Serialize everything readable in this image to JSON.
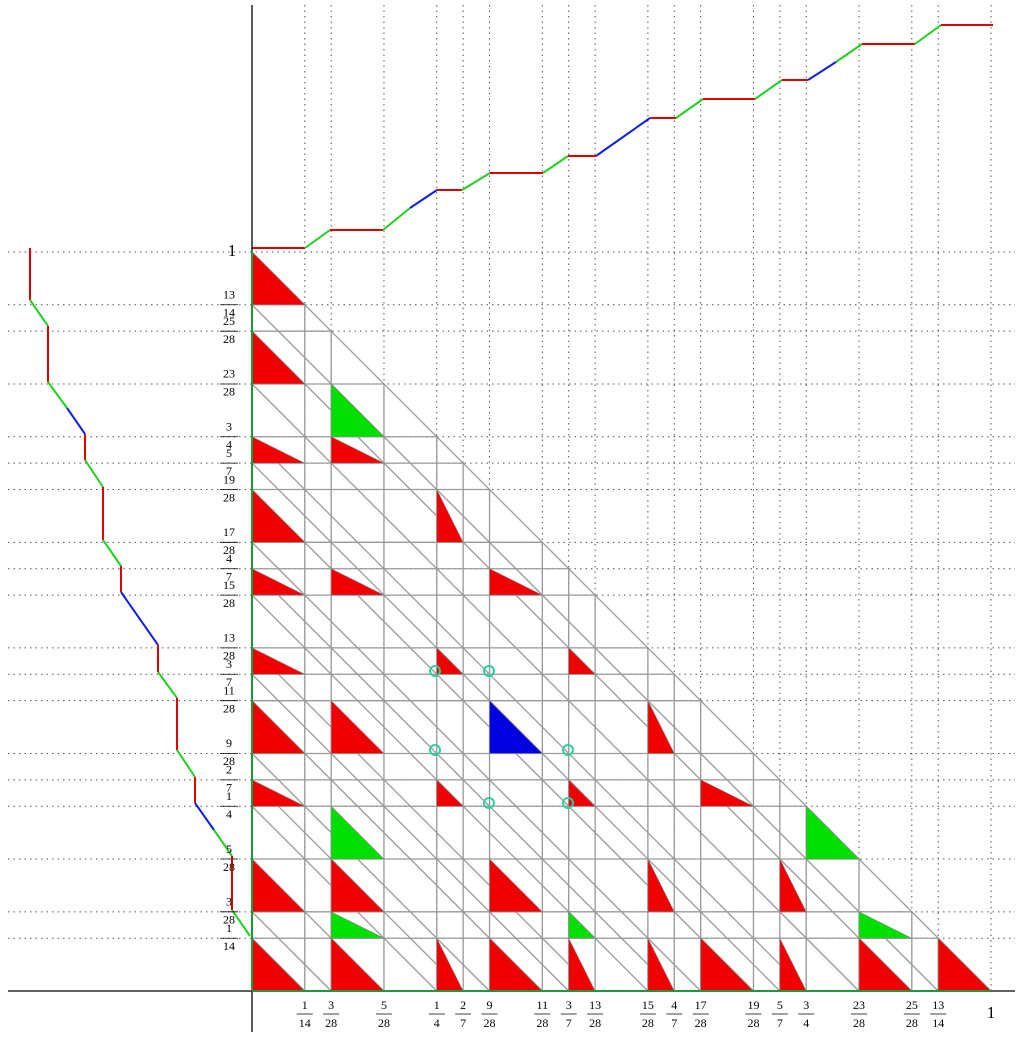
{
  "x_ticks": [
    {
      "num": 1,
      "den": 14
    },
    {
      "num": 3,
      "den": 28
    },
    {
      "num": 5,
      "den": 28
    },
    {
      "num": 1,
      "den": 4
    },
    {
      "num": 2,
      "den": 7
    },
    {
      "num": 9,
      "den": 28
    },
    {
      "num": 11,
      "den": 28
    },
    {
      "num": 3,
      "den": 7
    },
    {
      "num": 13,
      "den": 28
    },
    {
      "num": 15,
      "den": 28
    },
    {
      "num": 4,
      "den": 7
    },
    {
      "num": 17,
      "den": 28
    },
    {
      "num": 19,
      "den": 28
    },
    {
      "num": 5,
      "den": 7
    },
    {
      "num": 3,
      "den": 4
    },
    {
      "num": 23,
      "den": 28
    },
    {
      "num": 25,
      "den": 28
    },
    {
      "num": 13,
      "den": 14
    },
    {
      "num": 1
    }
  ],
  "y_ticks": [
    {
      "num": 1
    },
    {
      "num": 13,
      "den": 14
    },
    {
      "num": 25,
      "den": 28
    },
    {
      "num": 23,
      "den": 28
    },
    {
      "num": 3,
      "den": 4
    },
    {
      "num": 5,
      "den": 7
    },
    {
      "num": 19,
      "den": 28
    },
    {
      "num": 17,
      "den": 28
    },
    {
      "num": 4,
      "den": 7
    },
    {
      "num": 15,
      "den": 28
    },
    {
      "num": 13,
      "den": 28
    },
    {
      "num": 3,
      "den": 7
    },
    {
      "num": 11,
      "den": 28
    },
    {
      "num": 9,
      "den": 28
    },
    {
      "num": 2,
      "den": 7
    },
    {
      "num": 1,
      "den": 4
    },
    {
      "num": 5,
      "den": 28
    },
    {
      "num": 3,
      "den": 28
    },
    {
      "num": 1,
      "den": 14
    }
  ]
}
